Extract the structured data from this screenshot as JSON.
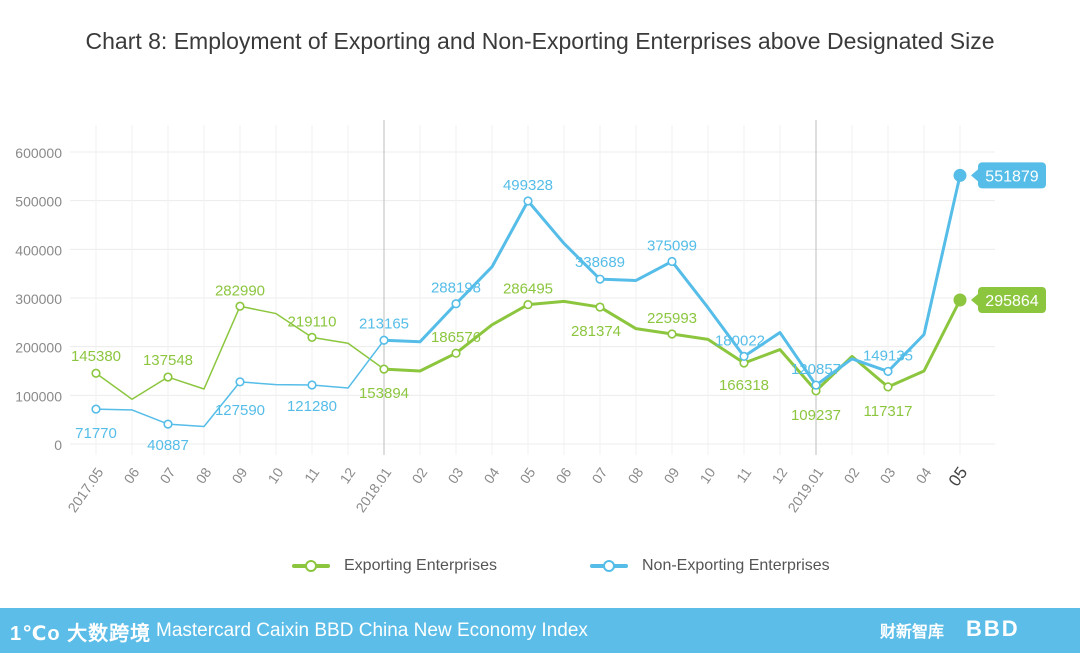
{
  "chart_data": {
    "type": "line",
    "title": "Chart 8: Employment of Exporting and Non-Exporting Enterprises above Designated Size",
    "xlabel": "",
    "ylabel": "",
    "ylim": [
      0,
      600000
    ],
    "yticks": [
      0,
      100000,
      200000,
      300000,
      400000,
      500000,
      600000
    ],
    "ytick_labels": [
      "0",
      "100000",
      "200000",
      "300000",
      "400000",
      "500000",
      "600000"
    ],
    "categories": [
      "2017.05",
      "06",
      "07",
      "08",
      "09",
      "10",
      "11",
      "12",
      "2018.01",
      "02",
      "03",
      "04",
      "05",
      "06",
      "07",
      "08",
      "09",
      "10",
      "11",
      "12",
      "2019.01",
      "02",
      "03",
      "04",
      "05"
    ],
    "year_dividers": [
      "2018.01",
      "2019.01"
    ],
    "series": [
      {
        "name": "Exporting Enterprises",
        "color": "#8cc63f",
        "values": [
          145380,
          92000,
          137548,
          113000,
          282990,
          268000,
          219110,
          207000,
          153894,
          150000,
          186576,
          245000,
          286495,
          293000,
          281374,
          237000,
          225993,
          215000,
          166318,
          194000,
          109237,
          180000,
          117317,
          150000,
          295864
        ],
        "labels": [
          "145380",
          "",
          "137548",
          "",
          "282990",
          "",
          "219110",
          "",
          "153894",
          "",
          "186576",
          "",
          "286495",
          "",
          "281374",
          "",
          "225993",
          "",
          "166318",
          "",
          "109237",
          "",
          "117317",
          "",
          ""
        ],
        "end_label": "295864"
      },
      {
        "name": "Non-Exporting Enterprises",
        "color": "#55bde8",
        "values": [
          71770,
          70000,
          40887,
          36000,
          127590,
          122000,
          121280,
          115000,
          213165,
          210000,
          288198,
          364000,
          499328,
          412000,
          338689,
          336000,
          375099,
          280000,
          180022,
          229000,
          120857,
          175000,
          149135,
          225000,
          551879
        ],
        "labels": [
          "71770",
          "",
          "40887",
          "",
          "127590",
          "",
          "121280",
          "",
          "213165",
          "",
          "288198",
          "",
          "499328",
          "",
          "338689",
          "",
          "375099",
          "",
          "180022",
          "",
          "120857",
          "",
          "149135",
          "",
          ""
        ],
        "end_label": "551879"
      }
    ]
  },
  "legend": {
    "exporting": "Exporting Enterprises",
    "non_exporting": "Non-Exporting Enterprises"
  },
  "footer": {
    "left_logo": "1℃o 大数跨境",
    "index_name": "Mastercard Caixin BBD China New Economy Index",
    "caixin_logo": "财新智库",
    "bbd_logo": "BBD",
    "color": "#5bbde8"
  }
}
